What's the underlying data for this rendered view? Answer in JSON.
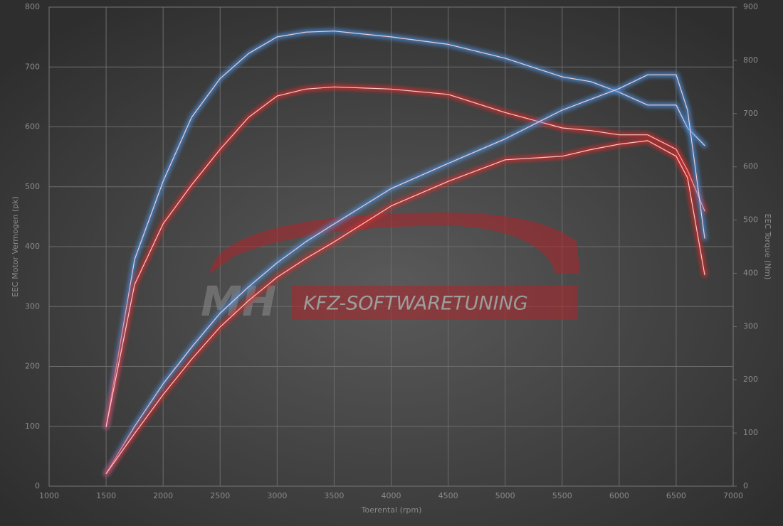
{
  "chart_data": {
    "type": "line",
    "y_label": "EEC Motor Vermogen (pk)",
    "y2_label": "EEC Torque (Nm)",
    "x_label": "Toerental (rpm)",
    "logo_initials": "MH",
    "logo_text": "KFZ-SOFTWARETUNING",
    "x": [
      1500,
      1750,
      2000,
      2250,
      2500,
      2750,
      3000,
      3250,
      3500,
      4000,
      4500,
      5000,
      5500,
      5750,
      6000,
      6250,
      6500,
      6600,
      6750
    ],
    "series": [
      {
        "color": "#4a8fe0",
        "axis": "y2",
        "values": [
          112,
          426,
          573,
          693,
          766,
          813,
          844,
          853,
          855,
          844,
          830,
          804,
          769,
          760,
          740,
          716,
          716,
          673,
          640
        ]
      },
      {
        "color": "#e02a2a",
        "axis": "y2",
        "values": [
          112,
          379,
          493,
          566,
          633,
          693,
          733,
          746,
          750,
          746,
          736,
          702,
          673,
          668,
          660,
          660,
          633,
          593,
          517
        ]
      },
      {
        "color": "#4a8fe0",
        "values": [
          21,
          100,
          171,
          232,
          289,
          333,
          373,
          408,
          438,
          497,
          539,
          580,
          628,
          646,
          664,
          687,
          687,
          628,
          414
        ]
      },
      {
        "color": "#e02a2a",
        "values": [
          21,
          88,
          153,
          212,
          266,
          310,
          349,
          380,
          408,
          468,
          509,
          545,
          551,
          562,
          571,
          577,
          551,
          515,
          353
        ]
      }
    ],
    "xlim": [
      1000,
      7000
    ],
    "xticks": [
      1000,
      1500,
      2000,
      2500,
      3000,
      3500,
      4000,
      4500,
      5000,
      5500,
      6000,
      6500,
      7000
    ],
    "ylim": [
      0,
      800
    ],
    "yticks": [
      0,
      100,
      200,
      300,
      400,
      500,
      600,
      700,
      800
    ],
    "y2lim": [
      0,
      900
    ],
    "y2ticks": [
      0,
      100,
      200,
      300,
      400,
      500,
      600,
      700,
      800,
      900
    ],
    "grid": true
  }
}
